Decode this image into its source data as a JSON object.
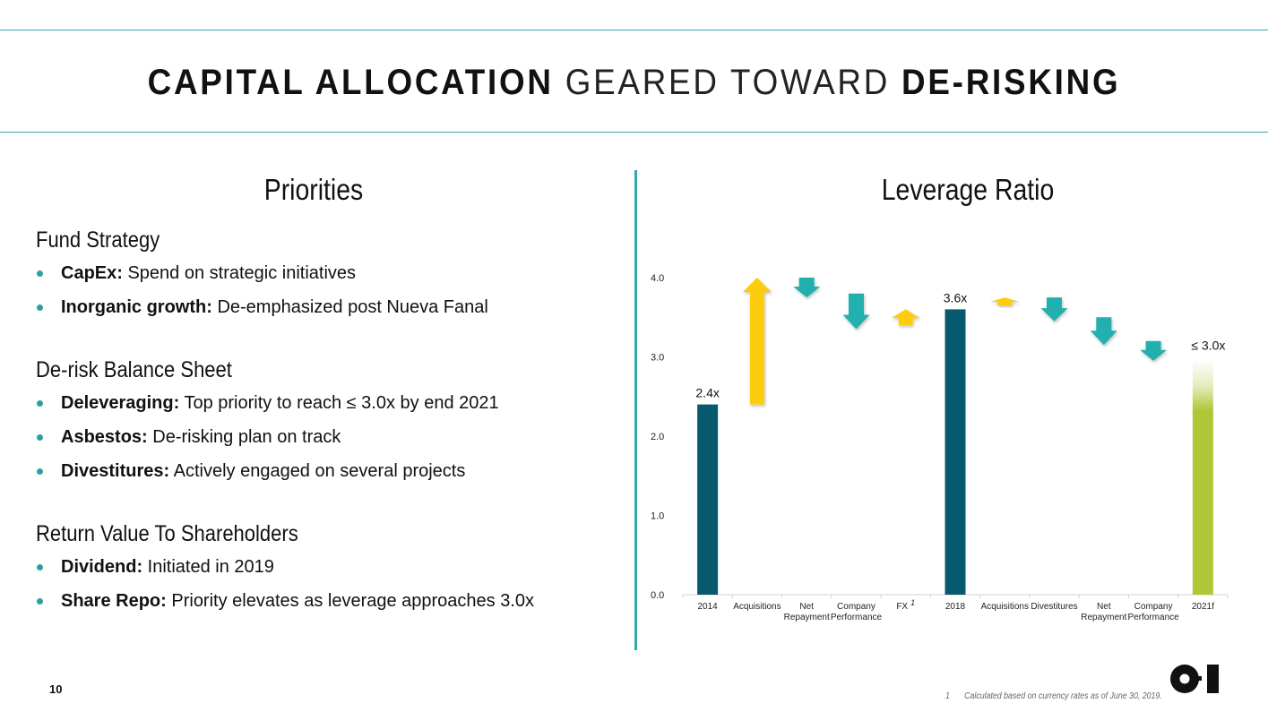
{
  "header": {
    "title_parts": [
      {
        "text": "CAPITAL ALLOCATION",
        "weight": "bold"
      },
      {
        "text": " GEARED TOWARD ",
        "weight": "light"
      },
      {
        "text": "DE-RISKING",
        "weight": "bold"
      }
    ]
  },
  "left": {
    "title": "Priorities",
    "sections": [
      {
        "heading": "Fund Strategy",
        "items": [
          {
            "bold": "CapEx:",
            "text": " Spend on strategic initiatives"
          },
          {
            "bold": "Inorganic growth:",
            "text": " De-emphasized post Nueva Fanal"
          }
        ]
      },
      {
        "heading": "De-risk Balance Sheet",
        "items": [
          {
            "bold": "Deleveraging:",
            "text": " Top priority to reach ≤ 3.0x by end 2021"
          },
          {
            "bold": "Asbestos:",
            "text": " De-risking plan on track"
          },
          {
            "bold": "Divestitures:",
            "text": " Actively engaged on several projects"
          }
        ]
      },
      {
        "heading": "Return Value To Shareholders",
        "items": [
          {
            "bold": "Dividend:",
            "text": " Initiated in 2019"
          },
          {
            "bold": "Share Repo:",
            "text": " Priority elevates as leverage approaches 3.0x"
          }
        ]
      }
    ]
  },
  "right": {
    "title": "Leverage Ratio"
  },
  "footer": {
    "page_number": "10",
    "footnote_number": "1",
    "footnote_text": "Calculated based on currency rates as of June 30, 2019.",
    "logo": "O-I"
  },
  "colors": {
    "accent_line": "#3aa9ad",
    "bar_dark": "#075a6e",
    "arrow_up": "#fdcd07",
    "arrow_down": "#20b0ae",
    "bar_target": "#b1c637"
  },
  "chart_data": {
    "type": "bar",
    "subtype": "waterfall",
    "title": "Leverage Ratio",
    "xlabel": "",
    "ylabel": "",
    "ylim": [
      0,
      4
    ],
    "yticks": [
      "0.0",
      "1.0",
      "2.0",
      "3.0",
      "4.0"
    ],
    "grid": false,
    "categories": [
      {
        "label": [
          "2014"
        ],
        "superscript": ""
      },
      {
        "label": [
          "Acquisitions"
        ],
        "superscript": ""
      },
      {
        "label": [
          "Net",
          "Repayment"
        ],
        "superscript": ""
      },
      {
        "label": [
          "Company",
          "Performance"
        ],
        "superscript": ""
      },
      {
        "label": [
          "FX"
        ],
        "superscript": "1"
      },
      {
        "label": [
          "2018"
        ],
        "superscript": ""
      },
      {
        "label": [
          "Acquisitions"
        ],
        "superscript": ""
      },
      {
        "label": [
          "Divestitures"
        ],
        "superscript": ""
      },
      {
        "label": [
          "Net",
          "Repayment"
        ],
        "superscript": ""
      },
      {
        "label": [
          "Company",
          "Performance"
        ],
        "superscript": ""
      },
      {
        "label": [
          "2021f"
        ],
        "superscript": ""
      }
    ],
    "items": [
      {
        "kind": "total",
        "value": 2.4,
        "label": "2.4x"
      },
      {
        "kind": "up",
        "from": 2.4,
        "to": 4.0
      },
      {
        "kind": "down",
        "from": 4.0,
        "to": 3.75
      },
      {
        "kind": "down",
        "from": 3.8,
        "to": 3.35
      },
      {
        "kind": "up",
        "from": 3.4,
        "to": 3.6
      },
      {
        "kind": "total",
        "value": 3.6,
        "label": "3.6x"
      },
      {
        "kind": "up",
        "from": 3.65,
        "to": 3.75
      },
      {
        "kind": "down",
        "from": 3.75,
        "to": 3.45
      },
      {
        "kind": "down",
        "from": 3.5,
        "to": 3.15
      },
      {
        "kind": "down",
        "from": 3.2,
        "to": 2.95
      },
      {
        "kind": "target",
        "value": 3.0,
        "label": "≤ 3.0x"
      }
    ]
  }
}
